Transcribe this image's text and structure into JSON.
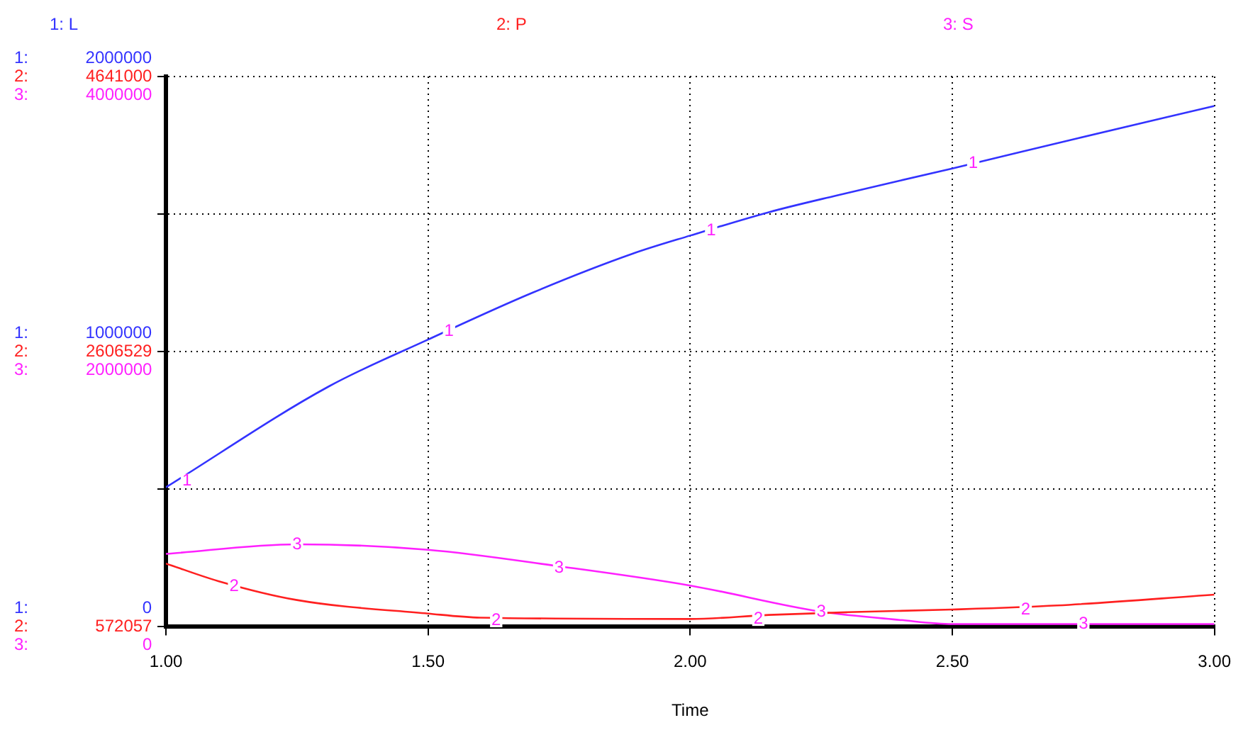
{
  "chart_data": {
    "type": "line",
    "xlabel": "Time",
    "annotations": [
      "1:",
      "2:",
      "3:",
      {
        "text": "1",
        "x": 1.04,
        "y": 530000
      },
      {
        "text": "1",
        "x": 1.54,
        "y": 1075000
      },
      {
        "text": "1",
        "x": 2.04,
        "y": 1440000
      },
      {
        "text": "1",
        "x": 2.54,
        "y": 1685000
      },
      {
        "text": "2",
        "x": 1.13,
        "y": 146000
      },
      {
        "text": "2",
        "x": 1.63,
        "y": 24000
      },
      {
        "text": "2",
        "x": 2.13,
        "y": 29000
      },
      {
        "text": "2",
        "x": 2.64,
        "y": 63000
      },
      {
        "text": "3",
        "x": 1.25,
        "y": 298000
      },
      {
        "text": "3",
        "x": 1.75,
        "y": 215000
      },
      {
        "text": "3",
        "x": 2.25,
        "y": 54000
      },
      {
        "text": "3",
        "x": 2.75,
        "y": 10000
      }
    ],
    "legend": "top",
    "grid": true,
    "marker": "none",
    "xlim": [
      1,
      3
    ],
    "xticks": [
      {
        "value": 1,
        "label": "1.00"
      },
      {
        "value": 1.5,
        "label": "1.50"
      },
      {
        "value": 2,
        "label": "2.00"
      },
      {
        "value": 2.5,
        "label": "2.50"
      },
      {
        "value": 3,
        "label": "3.00"
      }
    ],
    "ylim": [
      0,
      2000000
    ],
    "yticks": [
      0,
      {
        "value": 500000,
        "label": null
      },
      1000000,
      {
        "value": 1500000,
        "label": null
      },
      2000000
    ],
    "y2lim": [
      572057,
      4641000
    ],
    "y2ticks": [
      572057,
      2606529,
      4641000
    ],
    "y3lim": [
      0,
      4000000
    ],
    "y3ticks": [
      0,
      2000000,
      4000000
    ],
    "series": [
      {
        "name": "1: L",
        "color": "#3333ff",
        "x": [
          1,
          1.31,
          1.5,
          1.7,
          1.89,
          2,
          2.15,
          2.28,
          2.5,
          2.74,
          3
        ],
        "values": [
          507000,
          873000,
          1044000,
          1215000,
          1356000,
          1422000,
          1507000,
          1568000,
          1666000,
          1776000,
          1893000
        ]
      },
      {
        "name": "2: P",
        "color": "#ff2020",
        "axis": "y2",
        "x": [
          1,
          1.1,
          1.25,
          1.5,
          1.6,
          2,
          2.15,
          2.3,
          2.5,
          2.7,
          3
        ],
        "values": [
          1040000,
          910000,
          770000,
          670000,
          640000,
          630000,
          660000,
          680000,
          700000,
          730000,
          810000
        ]
      },
      {
        "name": "3: S",
        "color": "#ff20ff",
        "axis": "y3",
        "x": [
          1,
          1.25,
          1.5,
          1.75,
          2,
          2.25,
          2.4,
          2.5,
          3
        ],
        "values": [
          530000,
          600000,
          560000,
          440000,
          300000,
          110000,
          50000,
          20000,
          20000
        ]
      }
    ]
  }
}
